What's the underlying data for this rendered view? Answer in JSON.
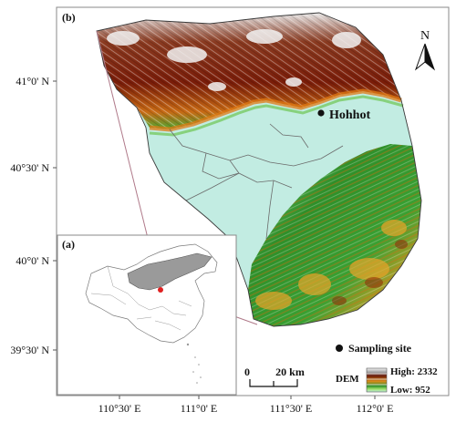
{
  "panels": {
    "main_label": "(b)",
    "inset_label": "(a)"
  },
  "axes": {
    "lat_ticks": [
      "41°0' N",
      "40°30' N",
      "40°0' N",
      "39°30' N"
    ],
    "lon_ticks": [
      "110°30' E",
      "111°0' E",
      "111°30' E",
      "112°0' E"
    ]
  },
  "north_arrow": {
    "label": "N",
    "icon": "north-arrow-icon"
  },
  "city": {
    "name": "Hohhot"
  },
  "scale_bar": {
    "zero": "0",
    "distance": "20 km"
  },
  "legend": {
    "sampling_site": "Sampling site",
    "dem_title": "DEM",
    "high": "High: 2332",
    "low": "Low: 952"
  },
  "colors": {
    "frame": "#8a8a8a",
    "plain": "#c2ece2",
    "relief_high": "#7a1c08",
    "relief_mid": "#d9a022",
    "relief_low": "#2f8f2a",
    "inset_region": "#9a9a9a",
    "study_marker": "#e02020",
    "leader_line": "#b07a8a"
  }
}
